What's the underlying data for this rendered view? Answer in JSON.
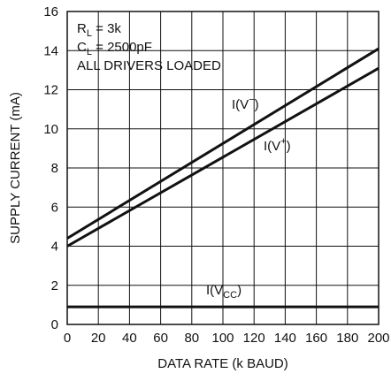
{
  "chart_data": {
    "type": "line",
    "xlabel": "DATA RATE (k BAUD)",
    "ylabel": "SUPPLY CURRENT (mA)",
    "xlim": [
      0,
      200
    ],
    "ylim": [
      0,
      16
    ],
    "x_ticks": [
      0,
      20,
      40,
      60,
      80,
      100,
      120,
      140,
      160,
      180,
      200
    ],
    "y_ticks": [
      0,
      2,
      4,
      6,
      8,
      10,
      12,
      14,
      16
    ],
    "grid": true,
    "conditions": {
      "rl": {
        "sym": "R",
        "sub": "L",
        "rest": " = 3k"
      },
      "cl": {
        "sym": "C",
        "sub": "L",
        "rest": " = 2500pF"
      },
      "loaded": "ALL DRIVERS LOADED"
    },
    "series": [
      {
        "label": {
          "pre": "I(V",
          "sup": "−",
          "post": ")"
        },
        "x": [
          0,
          200
        ],
        "y": [
          4.4,
          14.1
        ]
      },
      {
        "label": {
          "pre": "I(V",
          "sup": "+",
          "post": ")"
        },
        "x": [
          0,
          200
        ],
        "y": [
          4.0,
          13.1
        ]
      },
      {
        "label": {
          "pre": "I(V",
          "sub": "CC",
          "post": ")"
        },
        "x": [
          0,
          200
        ],
        "y": [
          0.9,
          0.9
        ]
      }
    ]
  }
}
